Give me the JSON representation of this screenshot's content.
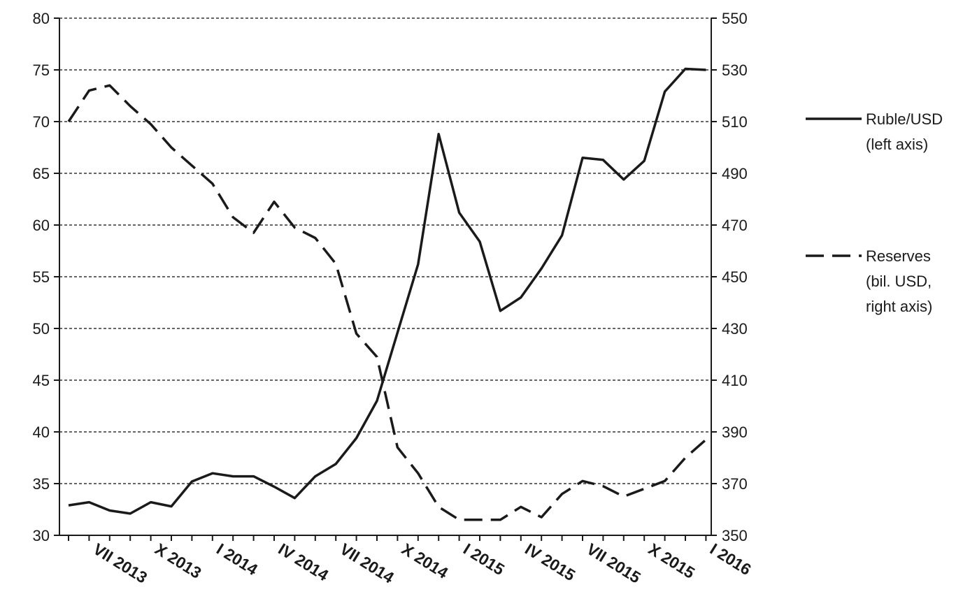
{
  "chart_data": {
    "type": "line",
    "title": "",
    "x_tick_labels": [
      "VII 2013",
      "X 2013",
      "I 2014",
      "IV 2014",
      "VII 2014",
      "X 2014",
      "I 2015",
      "IV 2015",
      "VII 2015",
      "X 2015",
      "I 2016"
    ],
    "x_months": [
      "VI 2013",
      "VII 2013",
      "VIII 2013",
      "IX 2013",
      "X 2013",
      "XI 2013",
      "XII 2013",
      "I 2014",
      "II 2014",
      "III 2014",
      "IV 2014",
      "V 2014",
      "VI 2014",
      "VII 2014",
      "VIII 2014",
      "IX 2014",
      "X 2014",
      "XI 2014",
      "XII 2014",
      "I 2015",
      "II 2015",
      "III 2015",
      "IV 2015",
      "V 2015",
      "VI 2015",
      "VII 2015",
      "VIII 2015",
      "IX 2015",
      "X 2015",
      "XI 2015",
      "XII 2015",
      "I 2016"
    ],
    "y_left": {
      "min": 30,
      "max": 80,
      "ticks": [
        30,
        35,
        40,
        45,
        50,
        55,
        60,
        65,
        70,
        75,
        80
      ]
    },
    "y_right": {
      "min": 350,
      "max": 550,
      "ticks": [
        350,
        370,
        390,
        410,
        430,
        450,
        470,
        490,
        510,
        530,
        550
      ]
    },
    "grid": "horizontal dashed",
    "legend_position": "right",
    "series": [
      {
        "name_lines": [
          "Ruble/USD",
          "(left axis)"
        ],
        "axis": "left",
        "style": "solid",
        "values": [
          32.9,
          33.2,
          32.4,
          32.1,
          33.2,
          32.8,
          35.2,
          36.0,
          35.7,
          35.7,
          34.7,
          33.6,
          35.7,
          36.9,
          39.4,
          43.0,
          49.6,
          56.2,
          68.8,
          61.2,
          58.4,
          51.7,
          53.0,
          55.8,
          59.0,
          66.5,
          66.3,
          64.4,
          66.2,
          72.9,
          75.1,
          75.0
        ]
      },
      {
        "name_lines": [
          "Reserves",
          "(bil. USD,",
          "right axis)"
        ],
        "axis": "right",
        "style": "dashed",
        "values": [
          510,
          522,
          524,
          516,
          509,
          500,
          493,
          486,
          473,
          467,
          479,
          469,
          465,
          455,
          428,
          419,
          384,
          374,
          361,
          356,
          356,
          356,
          361,
          357,
          366,
          371,
          369,
          365,
          368,
          371,
          380,
          387
        ]
      }
    ]
  },
  "colors": {
    "line": "#1a1a1a",
    "grid": "#333333",
    "background": "#ffffff"
  }
}
